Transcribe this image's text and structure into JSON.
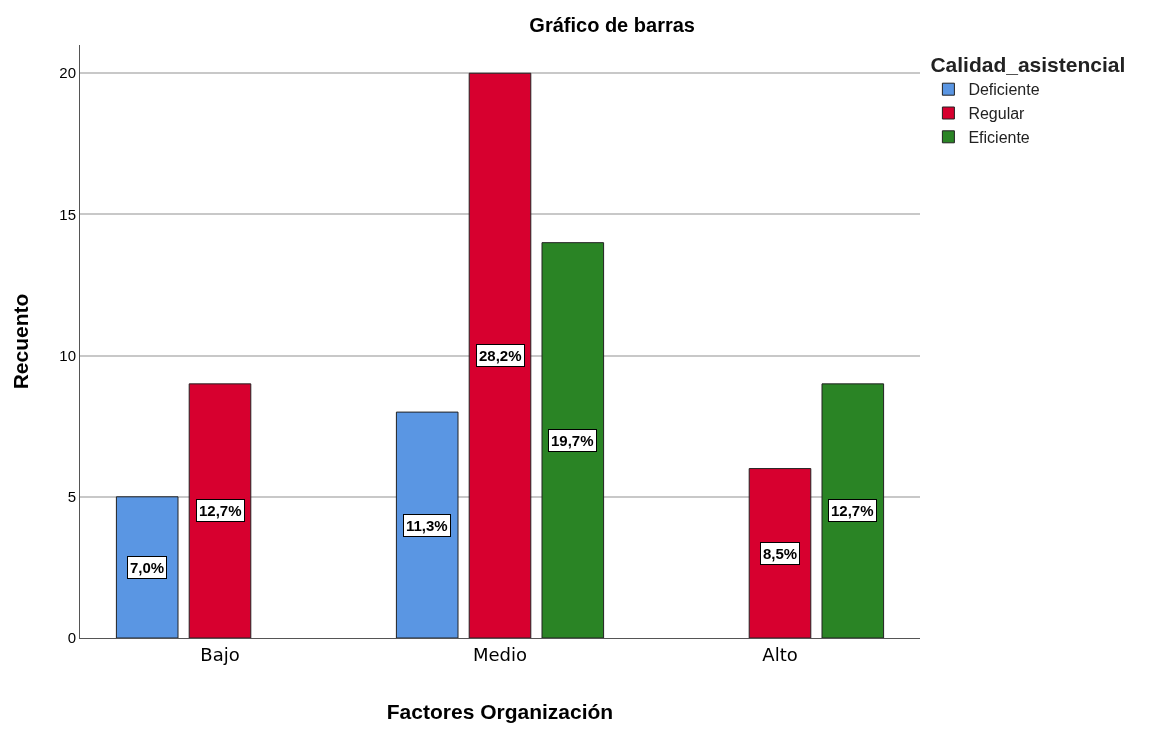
{
  "chart_data": {
    "type": "bar",
    "title": "Gráfico de barras",
    "xlabel": "Factores Organización",
    "ylabel": "Recuento",
    "legend_title": "Calidad_asistencial",
    "categories": [
      "Bajo",
      "Medio",
      "Alto"
    ],
    "series": [
      {
        "name": "Deficiente",
        "color": "#5a96e3",
        "values": [
          5,
          8,
          null
        ]
      },
      {
        "name": "Regular",
        "color": "#d7002f",
        "values": [
          9,
          20,
          6
        ]
      },
      {
        "name": "Eficiente",
        "color": "#2a8425",
        "values": [
          null,
          14,
          9
        ]
      }
    ],
    "annotations": [
      "7,0%",
      "11,3%",
      "12,7%",
      "28,2%",
      "8,5%",
      "19,7%",
      "12,7%"
    ],
    "ylim": [
      0,
      21
    ],
    "yticks": [
      0,
      5,
      10,
      15,
      20
    ],
    "grid": "y",
    "legend": "top right"
  }
}
